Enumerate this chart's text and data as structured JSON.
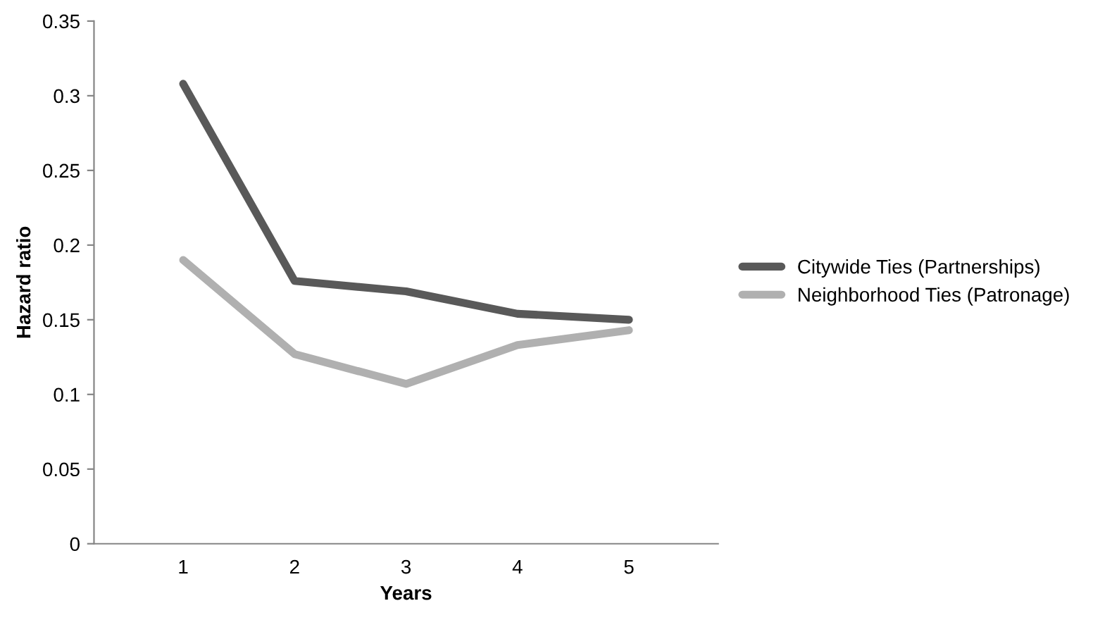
{
  "chart_data": {
    "type": "line",
    "xlabel": "Years",
    "ylabel": "Hazard ratio",
    "categories": [
      "1",
      "2",
      "3",
      "4",
      "5"
    ],
    "series": [
      {
        "name": "Citywide Ties (Partnerships)",
        "color": "#595959",
        "values": [
          0.308,
          0.176,
          0.169,
          0.154,
          0.15
        ]
      },
      {
        "name": "Neighborhood Ties (Patronage)",
        "color": "#b0b0b0",
        "values": [
          0.19,
          0.127,
          0.107,
          0.133,
          0.143
        ]
      }
    ],
    "ylim": [
      0,
      0.35
    ],
    "yticks": [
      0,
      0.05,
      0.1,
      0.15,
      0.2,
      0.25,
      0.3,
      0.35
    ],
    "grid": false,
    "legend": "right",
    "marker": "none",
    "line_style": "solid"
  }
}
